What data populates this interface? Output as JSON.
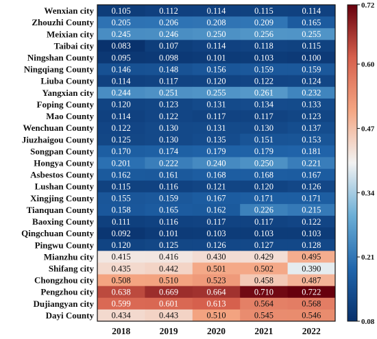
{
  "chart_data": {
    "type": "heatmap",
    "title": "",
    "xlabel": "",
    "ylabel": "",
    "x": [
      "2018",
      "2019",
      "2020",
      "2021",
      "2022"
    ],
    "y": [
      "Wenxian city",
      "Zhouzhi County",
      "Meixian city",
      "Taibai city",
      "Ningshan County",
      "Ningqiang County",
      "Liuba County",
      "Yangxian city",
      "Foping County",
      "Mao County",
      "Wenchuan County",
      "Jiuzhaigou County",
      "Songpan County",
      "Hongya County",
      "Asbestos County",
      "Lushan County",
      "Xingjing County",
      "Tianquan County",
      "Baoxing County",
      "Qingchuan County",
      "Pingwu County",
      "Mianzhu city",
      "Shifang city",
      "Chongzhou city",
      "Pengzhou city",
      "Dujiangyan city",
      "Dayi County"
    ],
    "values": [
      [
        "0.105",
        "0.112",
        "0.114",
        "0.115",
        "0.114"
      ],
      [
        "0.205",
        "0.206",
        "0.208",
        "0.209",
        "0.165"
      ],
      [
        "0.245",
        "0.246",
        "0.250",
        "0.256",
        "0.255"
      ],
      [
        "0.083",
        "0.107",
        "0.114",
        "0.118",
        "0.115"
      ],
      [
        "0.095",
        "0.098",
        "0.101",
        "0.103",
        "0.100"
      ],
      [
        "0.146",
        "0.148",
        "0.156",
        "0.159",
        "0.159"
      ],
      [
        "0.114",
        "0.117",
        "0.120",
        "0.122",
        "0.124"
      ],
      [
        "0.244",
        "0.251",
        "0.255",
        "0.261",
        "0.232"
      ],
      [
        "0.120",
        "0.123",
        "0.131",
        "0.134",
        "0.133"
      ],
      [
        "0.114",
        "0.122",
        "0.117",
        "0.117",
        "0.123"
      ],
      [
        "0.122",
        "0.130",
        "0.131",
        "0.130",
        "0.137"
      ],
      [
        "0.125",
        "0.130",
        "0.135",
        "0.151",
        "0.153"
      ],
      [
        "0.170",
        "0.174",
        "0.179",
        "0.179",
        "0.181"
      ],
      [
        "0.201",
        "0.222",
        "0.240",
        "0.250",
        "0.221"
      ],
      [
        "0.162",
        "0.161",
        "0.168",
        "0.168",
        "0.167"
      ],
      [
        "0.115",
        "0.116",
        "0.121",
        "0.120",
        "0.126"
      ],
      [
        "0.155",
        "0.159",
        "0.167",
        "0.171",
        "0.171"
      ],
      [
        "0.158",
        "0.165",
        "0.162",
        "0.226",
        "0.215"
      ],
      [
        "0.111",
        "0.116",
        "0.117",
        "0.117",
        "0.122"
      ],
      [
        "0.092",
        "0.101",
        "0.103",
        "0.103",
        "0.103"
      ],
      [
        "0.120",
        "0.125",
        "0.126",
        "0.127",
        "0.128"
      ],
      [
        "0.415",
        "0.416",
        "0.430",
        "0.429",
        "0.495"
      ],
      [
        "0.435",
        "0.442",
        "0.501",
        "0.502",
        "0.390"
      ],
      [
        "0.508",
        "0.510",
        "0.523",
        "0.458",
        "0.487"
      ],
      [
        "0.638",
        "0.669",
        "0.664",
        "0.710",
        "0.722"
      ],
      [
        "0.599",
        "0.601",
        "0.613",
        "0.564",
        "0.568"
      ],
      [
        "0.434",
        "0.443",
        "0.510",
        "0.545",
        "0.546"
      ]
    ],
    "colorbar": {
      "range": [
        0.08,
        0.72
      ],
      "ticks": [
        "0.08",
        "0.21",
        "0.34",
        "0.47",
        "0.60",
        "0.72"
      ],
      "colors": [
        "#08306b",
        "#2166ac",
        "#6baed6",
        "#f2f2f2",
        "#f4a582",
        "#d6604d",
        "#67000d"
      ]
    },
    "legend": "colorbar-right"
  }
}
